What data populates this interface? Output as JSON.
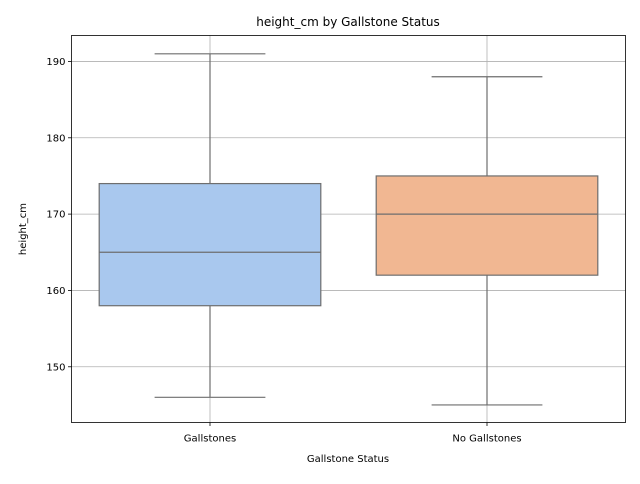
{
  "chart_data": {
    "type": "box",
    "title": "height_cm by Gallstone Status",
    "xlabel": "Gallstone Status",
    "ylabel": "height_cm",
    "categories": [
      "Gallstones",
      "No Gallstones"
    ],
    "yticks": [
      "150",
      "160",
      "170",
      "180",
      "190"
    ],
    "ylim": [
      142.7,
      193.4
    ],
    "grid": true,
    "boxes": [
      {
        "category": "Gallstones",
        "whisker_low": 146,
        "q1": 158,
        "median": 165,
        "q3": 174,
        "whisker_high": 191,
        "color": "#a9c8ee"
      },
      {
        "category": "No Gallstones",
        "whisker_low": 145,
        "q1": 162,
        "median": 170,
        "q3": 175,
        "whisker_high": 188,
        "color": "#f1b792"
      }
    ]
  }
}
